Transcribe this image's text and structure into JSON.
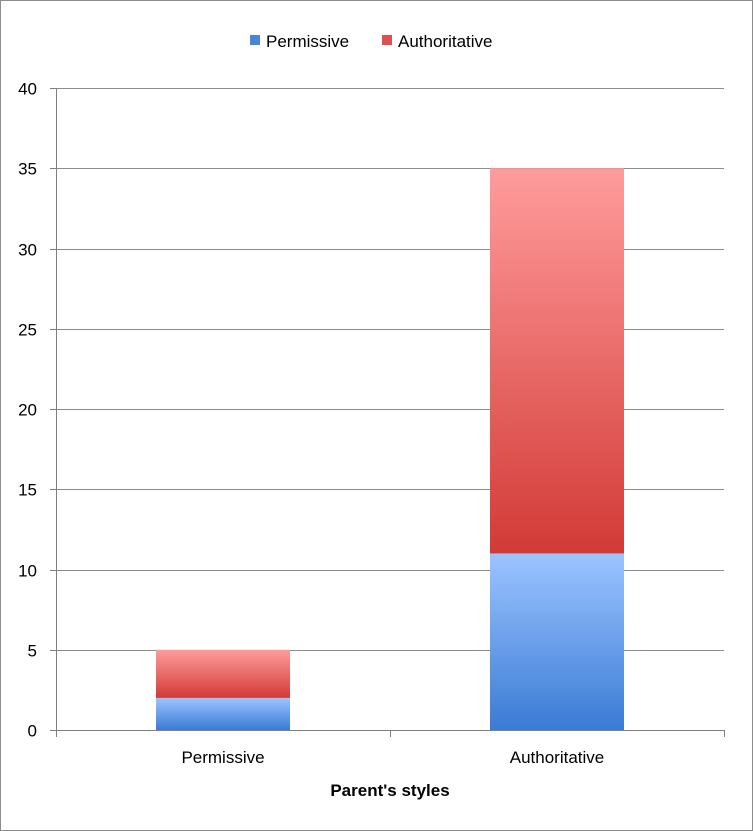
{
  "chart_data": {
    "type": "bar",
    "stacked": true,
    "categories": [
      "Permissive",
      "Authoritative"
    ],
    "series": [
      {
        "name": "Permissive",
        "values": [
          2,
          11
        ],
        "color": "#4a86d8"
      },
      {
        "name": "Authoritative",
        "values": [
          3,
          24
        ],
        "color": "#e05050"
      }
    ],
    "xlabel": "Parent's styles",
    "ylabel": "",
    "ylim": [
      0,
      40
    ],
    "yticks": [
      0,
      5,
      10,
      15,
      20,
      25,
      30,
      35,
      40
    ],
    "grid": true,
    "legend_position": "top-center"
  }
}
